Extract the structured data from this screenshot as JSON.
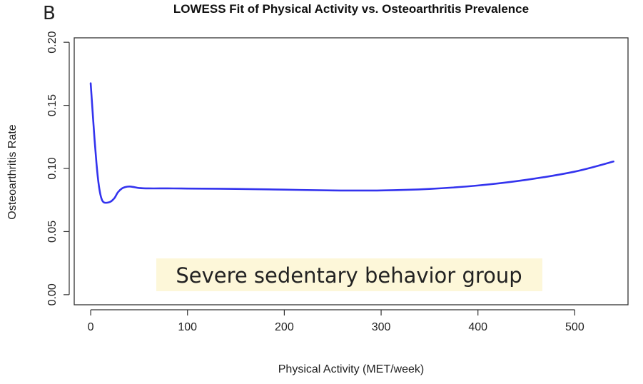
{
  "panel_label": "B",
  "chart_data": {
    "type": "line",
    "title": "LOWESS Fit of Physical Activity vs. Osteoarthritis Prevalence",
    "xlabel": "Physical Activity (MET/week)",
    "ylabel": "Osteoarthritis Rate",
    "xlim": [
      -17,
      555
    ],
    "ylim": [
      -0.008,
      0.2035
    ],
    "x_ticks": [
      0,
      100,
      200,
      300,
      400,
      500
    ],
    "x_tick_labels": [
      "0",
      "100",
      "200",
      "300",
      "400",
      "500"
    ],
    "y_ticks": [
      0.0,
      0.05,
      0.1,
      0.15,
      0.2
    ],
    "y_tick_labels": [
      "0.00",
      "0.05",
      "0.10",
      "0.15",
      "0.20"
    ],
    "grid": false,
    "series_color": "#3333ee",
    "annotation": "Severe sedentary behavior group",
    "annotation_bg": "#fdf7d9",
    "x": [
      0,
      2,
      4,
      6,
      8,
      10,
      12,
      14,
      16,
      18,
      20,
      22,
      25,
      28,
      32,
      36,
      40,
      45,
      50,
      60,
      80,
      100,
      150,
      200,
      250,
      300,
      350,
      400,
      450,
      500,
      540
    ],
    "y": [
      0.1675,
      0.145,
      0.123,
      0.104,
      0.089,
      0.0795,
      0.0745,
      0.073,
      0.0728,
      0.073,
      0.0735,
      0.0745,
      0.077,
      0.081,
      0.084,
      0.0853,
      0.0857,
      0.0852,
      0.0845,
      0.0842,
      0.0842,
      0.0841,
      0.0838,
      0.0832,
      0.0826,
      0.0826,
      0.0838,
      0.0865,
      0.091,
      0.0975,
      0.1055
    ]
  }
}
